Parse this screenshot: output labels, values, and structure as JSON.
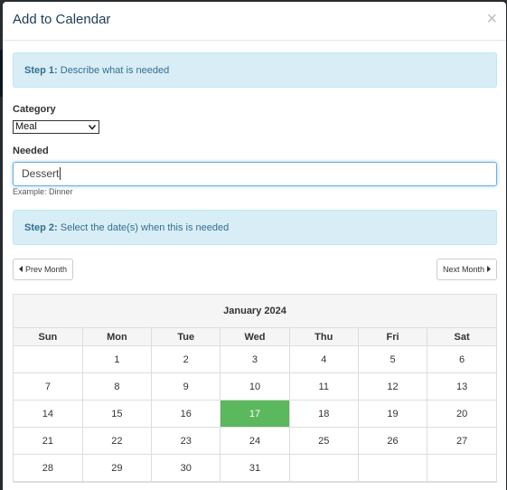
{
  "modal": {
    "title": "Add to Calendar",
    "close": "×"
  },
  "step1": {
    "prefix": "Step 1:",
    "text": " Describe what is needed"
  },
  "category": {
    "label": "Category",
    "value": "Meal"
  },
  "needed": {
    "label": "Needed",
    "value": "Dessert",
    "help": "Example: Dinner"
  },
  "step2": {
    "prefix": "Step 2:",
    "text": " Select the date(s) when this is needed"
  },
  "nav": {
    "prev_label": "Prev Month",
    "next_label": "Next Month"
  },
  "calendar": {
    "month_label": "January 2024",
    "weekdays": [
      "Sun",
      "Mon",
      "Tue",
      "Wed",
      "Thu",
      "Fri",
      "Sat"
    ],
    "weeks": [
      [
        "",
        "1",
        "2",
        "3",
        "4",
        "5",
        "6"
      ],
      [
        "7",
        "8",
        "9",
        "10",
        "11",
        "12",
        "13"
      ],
      [
        "14",
        "15",
        "16",
        "17",
        "18",
        "19",
        "20"
      ],
      [
        "21",
        "22",
        "23",
        "24",
        "25",
        "26",
        "27"
      ],
      [
        "28",
        "29",
        "30",
        "31",
        "",
        "",
        ""
      ]
    ],
    "selected_day": "17",
    "selected_color": "#5cb85c"
  }
}
